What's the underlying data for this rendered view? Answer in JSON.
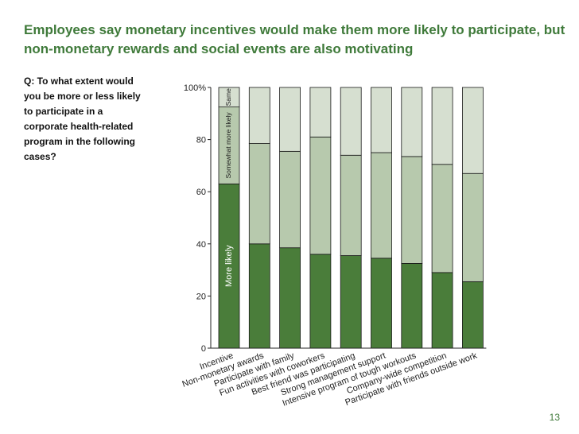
{
  "title": "Employees say monetary incentives would make them more likely to participate, but non-monetary rewards and social events are also motivating",
  "question": "Q: To what extent would you be more or less likely to participate in a corporate health-related program in the following cases?",
  "page_number": "13",
  "colors": {
    "title": "#3f7a3a",
    "more_likely": "#4a7d3a",
    "somewhat_more_likely": "#b7c9ad",
    "same": "#d6dfd0"
  },
  "chart_data": {
    "type": "bar",
    "stacked": true,
    "categories": [
      "Incentive",
      "Non-monetary awards",
      "Participate with family",
      "Fun activities with coworkers",
      "Best friend was participating",
      "Strong management support",
      "Intensive program of tough workouts",
      "Company-wide competition",
      "Participate with friends outside work"
    ],
    "y_tick_labels": [
      "0",
      "20",
      "40",
      "60",
      "80",
      "100%"
    ],
    "ylim": [
      0,
      100
    ],
    "series": [
      {
        "name": "More likely",
        "values": [
          63,
          40,
          38.5,
          36,
          35.5,
          34.5,
          32.5,
          29,
          25.5
        ]
      },
      {
        "name": "Somewhat more likely",
        "values": [
          29.5,
          38.5,
          37,
          45,
          38.5,
          40.5,
          41,
          41.5,
          41.5
        ]
      },
      {
        "name": "Same",
        "values": [
          7.5,
          21.5,
          24.5,
          19,
          26,
          25,
          26.5,
          29.5,
          33
        ]
      }
    ]
  }
}
